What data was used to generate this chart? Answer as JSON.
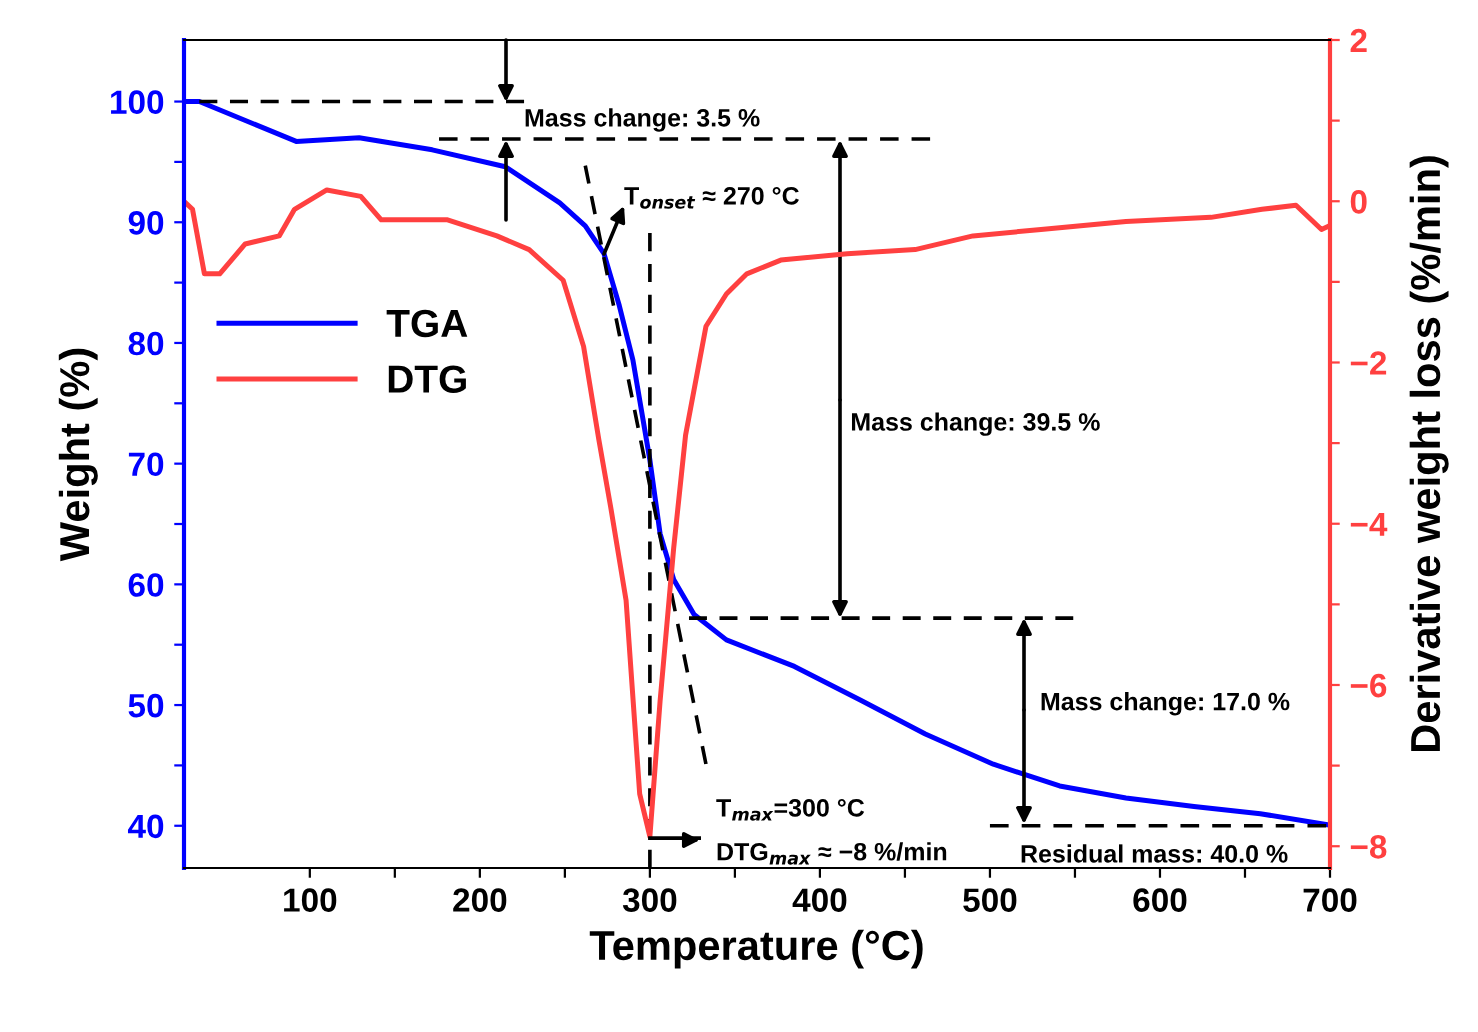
{
  "chart_data": {
    "type": "line",
    "xlabel": "Temperature (°C)",
    "ylabel": "Weight (%)",
    "y2label": "Derivative weight loss (%/min)",
    "xlim": [
      26,
      700
    ],
    "xticks": [
      {
        "value": 100,
        "label": "100"
      },
      {
        "value": 150,
        "label": null
      },
      {
        "value": 200,
        "label": "200"
      },
      {
        "value": 250,
        "label": null
      },
      {
        "value": 300,
        "label": "300"
      },
      {
        "value": 350,
        "label": null
      },
      {
        "value": 400,
        "label": "400"
      },
      {
        "value": 450,
        "label": null
      },
      {
        "value": 500,
        "label": "500"
      },
      {
        "value": 550,
        "label": null
      },
      {
        "value": 600,
        "label": "600"
      },
      {
        "value": 650,
        "label": null
      },
      {
        "value": 700,
        "label": "700"
      }
    ],
    "ylim": [
      36.5,
      105.1
    ],
    "yticks": [
      {
        "value": 40,
        "label": "40"
      },
      {
        "value": 45,
        "label": null
      },
      {
        "value": 50,
        "label": "50"
      },
      {
        "value": 55,
        "label": null
      },
      {
        "value": 60,
        "label": "60"
      },
      {
        "value": 65,
        "label": null
      },
      {
        "value": 70,
        "label": "70"
      },
      {
        "value": 75,
        "label": null
      },
      {
        "value": 80,
        "label": "80"
      },
      {
        "value": 85,
        "label": null
      },
      {
        "value": 90,
        "label": "90"
      },
      {
        "value": 95,
        "label": null
      },
      {
        "value": 100,
        "label": "100"
      }
    ],
    "y2lim": [
      -8.27,
      2
    ],
    "y2ticks": [
      {
        "value": -8,
        "label": "−8"
      },
      {
        "value": -7,
        "label": null
      },
      {
        "value": -6,
        "label": "−6"
      },
      {
        "value": -5,
        "label": null
      },
      {
        "value": -4,
        "label": "−4"
      },
      {
        "value": -3,
        "label": null
      },
      {
        "value": -2,
        "label": "−2"
      },
      {
        "value": -1,
        "label": null
      },
      {
        "value": 0,
        "label": "0"
      },
      {
        "value": 1,
        "label": null
      },
      {
        "value": 2,
        "label": "2"
      }
    ],
    "legend": "center left",
    "grid": false,
    "series": [
      {
        "name": "TGA",
        "color": "#0000ff",
        "x": [
          26,
          35,
          92,
          129,
          172,
          215,
          247,
          262,
          273,
          282,
          290,
          300,
          306,
          314,
          326,
          345,
          385,
          424,
          462,
          502,
          541,
          580,
          620,
          659,
          698
        ],
        "values": [
          100,
          100,
          96.7,
          97.0,
          96.0,
          94.6,
          91.6,
          89.7,
          87.4,
          83.1,
          78.6,
          70.3,
          64.2,
          60.4,
          57.5,
          55.4,
          53.2,
          50.4,
          47.6,
          45.1,
          43.3,
          42.3,
          41.6,
          41.0,
          40.1
        ]
      },
      {
        "name": "DTG",
        "color": "#ff4040",
        "axis": "y2",
        "x": [
          26,
          31,
          38,
          47,
          62,
          82,
          91,
          110,
          130,
          142,
          181,
          210,
          229,
          249,
          261,
          270,
          277,
          286,
          294,
          300,
          306,
          314,
          321,
          333,
          345,
          357,
          377,
          416,
          456,
          490,
          530,
          580,
          630,
          660,
          680,
          695,
          700
        ],
        "values": [
          0.0,
          -0.1,
          -0.9,
          -0.9,
          -0.53,
          -0.43,
          -0.1,
          0.14,
          0.06,
          -0.23,
          -0.23,
          -0.43,
          -0.6,
          -0.98,
          -1.8,
          -2.96,
          -3.8,
          -4.95,
          -7.35,
          -7.88,
          -6.2,
          -4.3,
          -2.9,
          -1.55,
          -1.15,
          -0.9,
          -0.73,
          -0.65,
          -0.6,
          -0.43,
          -0.35,
          -0.25,
          -0.2,
          -0.1,
          -0.05,
          -0.35,
          -0.3
        ]
      },
      {
        "color": "#000000",
        "line_style": "dashed",
        "x": [
          35,
          226
        ],
        "values": [
          100,
          100
        ]
      },
      {
        "color": "#000000",
        "line_style": "dashed",
        "x": [
          176,
          465
        ],
        "values": [
          96.9,
          96.9
        ]
      },
      {
        "color": "#000000",
        "line_style": "dashed",
        "x": [
          323,
          549
        ],
        "values": [
          57.2,
          57.2
        ]
      },
      {
        "color": "#000000",
        "line_style": "dashed",
        "x": [
          500,
          698
        ],
        "values": [
          40.0,
          40.0
        ]
      },
      {
        "color": "#000000",
        "line_style": "dashed",
        "x": [
          262,
          333
        ],
        "values": [
          94.7,
          45.1
        ]
      },
      {
        "color": "#000000",
        "line_style": "dashed",
        "x": [
          300,
          300
        ],
        "values": [
          89.1,
          36.5
        ]
      },
      {
        "color": "#000000",
        "axis": "y2",
        "x": [
          300,
          329
        ],
        "values": [
          -7.9,
          -7.9
        ]
      }
    ],
    "annotations": [
      "Mass change: 3.5 %",
      "T$_{onset}$ ≈ 270 °C",
      {
        "text": "Mass change: 39.5 %",
        "x": 412,
        "y": 57.2
      },
      {
        "text": "Mass change: 17.0 %",
        "x": 520,
        "y": 40.0
      },
      "T$_{max}$=300 °C",
      "DTG$_{max}$ ≈ −8 %/min",
      "Residual mass: 40.0 %"
    ]
  }
}
